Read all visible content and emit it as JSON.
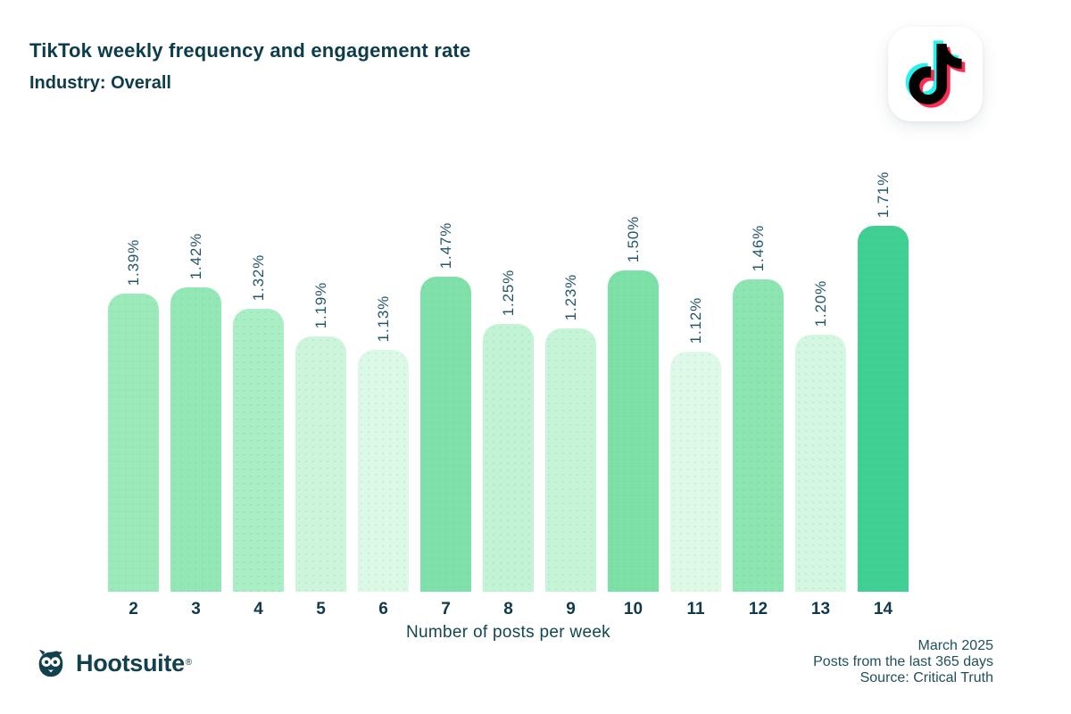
{
  "header": {
    "title": "TikTok weekly frequency and engagement rate",
    "subtitle": "Industry: Overall"
  },
  "chart_data": {
    "type": "bar",
    "categories": [
      "2",
      "3",
      "4",
      "5",
      "6",
      "7",
      "8",
      "9",
      "10",
      "11",
      "12",
      "13",
      "14"
    ],
    "values": [
      1.39,
      1.42,
      1.32,
      1.19,
      1.13,
      1.47,
      1.25,
      1.23,
      1.5,
      1.12,
      1.46,
      1.2,
      1.71
    ],
    "value_labels": [
      "1.39%",
      "1.42%",
      "1.32%",
      "1.19%",
      "1.13%",
      "1.47%",
      "1.25%",
      "1.23%",
      "1.50%",
      "1.12%",
      "1.46%",
      "1.20%",
      "1.71%"
    ],
    "bar_colors": [
      "#9ce9ba",
      "#93e7b4",
      "#a9eec4",
      "#cdf5dc",
      "#dcf9e7",
      "#7fe1a9",
      "#c2f3d4",
      "#c6f4d7",
      "#7de0a7",
      "#def9e8",
      "#8de5b1",
      "#d3f7e1",
      "#41d094"
    ],
    "title": "TikTok weekly frequency and engagement rate",
    "subtitle": "Industry: Overall",
    "xlabel": "Number of posts per week",
    "ylabel": "",
    "ylim": [
      0,
      1.8
    ],
    "grid": false,
    "legend": "none",
    "value_label_rotation": -90
  },
  "footer": {
    "right_lines": [
      "March 2025",
      "Posts from the last 365 days",
      "Source: Critical Truth"
    ],
    "brand": "Hootsuite",
    "registered_mark": "®"
  },
  "colors": {
    "title_text": "#0d3c4a",
    "value_label_text": "#24566b",
    "tick_text": "#10394a",
    "footer_text": "#20505e",
    "hootsuite_brand": "#12404d",
    "tiktok_cyan": "#25f4ee",
    "tiktok_red": "#fe2c55",
    "tiktok_black": "#010101"
  }
}
